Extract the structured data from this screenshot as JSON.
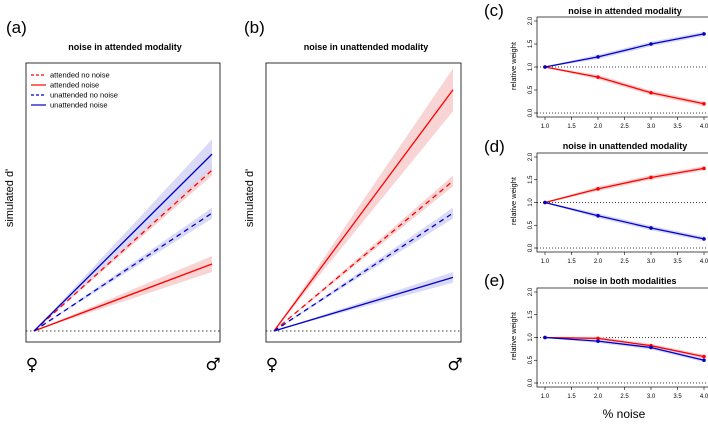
{
  "colors": {
    "attended": "#ff0000",
    "unattended": "#0000cc",
    "attended_band": "#f7cccc",
    "unattended_band": "#d4d4f5"
  },
  "chart_data": [
    {
      "id": "a",
      "panel_label": "(a)",
      "type": "line",
      "title": "noise in attended modality",
      "ylabel": "simulated d'",
      "x_symbols": [
        "♀",
        "♂"
      ],
      "legend": [
        "attended no noise",
        "attended noise",
        "unattended no noise",
        "unattended noise"
      ],
      "series": [
        {
          "name": "attended no noise",
          "color": "#ff0000",
          "dash": true,
          "end": 0.6,
          "band": 0.02
        },
        {
          "name": "attended noise",
          "color": "#ff0000",
          "dash": false,
          "end": 0.25,
          "band": 0.03
        },
        {
          "name": "unattended no noise",
          "color": "#0000cc",
          "dash": true,
          "end": 0.44,
          "band": 0.02
        },
        {
          "name": "unattended noise",
          "color": "#0000cc",
          "dash": false,
          "end": 0.66,
          "band": 0.055
        }
      ]
    },
    {
      "id": "b",
      "panel_label": "(b)",
      "type": "line",
      "title": "noise in unattended modality",
      "ylabel": "simulated d'",
      "x_symbols": [
        "♀",
        "♂"
      ],
      "series": [
        {
          "name": "attended no noise",
          "color": "#ff0000",
          "dash": true,
          "end": 0.56,
          "band": 0.02
        },
        {
          "name": "attended noise",
          "color": "#ff0000",
          "dash": false,
          "end": 0.9,
          "band": 0.08
        },
        {
          "name": "unattended no noise",
          "color": "#0000cc",
          "dash": true,
          "end": 0.44,
          "band": 0.02
        },
        {
          "name": "unattended noise",
          "color": "#0000cc",
          "dash": false,
          "end": 0.2,
          "band": 0.02
        }
      ]
    },
    {
      "id": "c",
      "panel_label": "(c)",
      "type": "line",
      "title": "noise in attended modality",
      "ylabel": "relative weight",
      "x": [
        1.0,
        2.0,
        3.0,
        4.0
      ],
      "xticks": [
        "1.0",
        "1.5",
        "2.0",
        "2.5",
        "3.0",
        "3.5",
        "4.0"
      ],
      "yticks": [
        "0.0",
        "0.5",
        "1.0",
        "1.5",
        "2.0"
      ],
      "ylim": [
        0,
        2
      ],
      "series": [
        {
          "name": "attended",
          "color": "#ff0000",
          "values": [
            1.0,
            0.78,
            0.44,
            0.2
          ],
          "band": 0.05
        },
        {
          "name": "unattended",
          "color": "#0000cc",
          "values": [
            1.0,
            1.22,
            1.5,
            1.72
          ],
          "band": 0.05
        }
      ]
    },
    {
      "id": "d",
      "panel_label": "(d)",
      "type": "line",
      "title": "noise in unattended modality",
      "ylabel": "relative weight",
      "x": [
        1.0,
        2.0,
        3.0,
        4.0
      ],
      "xticks": [
        "1.0",
        "1.5",
        "2.0",
        "2.5",
        "3.0",
        "3.5",
        "4.0"
      ],
      "yticks": [
        "0.0",
        "0.5",
        "1.0",
        "1.5",
        "2.0"
      ],
      "ylim": [
        0,
        2
      ],
      "series": [
        {
          "name": "attended",
          "color": "#ff0000",
          "values": [
            1.0,
            1.3,
            1.55,
            1.75
          ],
          "band": 0.05
        },
        {
          "name": "unattended",
          "color": "#0000cc",
          "values": [
            1.0,
            0.71,
            0.44,
            0.2
          ],
          "band": 0.05
        }
      ]
    },
    {
      "id": "e",
      "panel_label": "(e)",
      "type": "line",
      "title": "noise in both modalities",
      "ylabel": "relative weight",
      "x": [
        1.0,
        2.0,
        3.0,
        4.0
      ],
      "xticks": [
        "1.0",
        "1.5",
        "2.0",
        "2.5",
        "3.0",
        "3.5",
        "4.0"
      ],
      "yticks": [
        "0.0",
        "0.5",
        "1.0",
        "1.5",
        "2.0"
      ],
      "ylim": [
        0,
        2
      ],
      "series": [
        {
          "name": "attended",
          "color": "#ff0000",
          "values": [
            1.0,
            0.98,
            0.82,
            0.58
          ],
          "band": 0.04
        },
        {
          "name": "unattended",
          "color": "#0000cc",
          "values": [
            1.0,
            0.92,
            0.78,
            0.5
          ],
          "band": 0.04
        }
      ]
    }
  ],
  "shared_xlabel": "% noise"
}
